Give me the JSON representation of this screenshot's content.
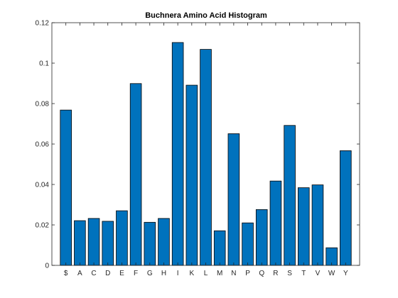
{
  "chart_data": {
    "type": "bar",
    "title": "Buchnera Amino Acid Histogram",
    "xlabel": "",
    "ylabel": "",
    "categories": [
      "$",
      "A",
      "C",
      "D",
      "E",
      "F",
      "G",
      "H",
      "I",
      "K",
      "L",
      "M",
      "N",
      "P",
      "Q",
      "R",
      "S",
      "T",
      "V",
      "W",
      "Y"
    ],
    "values": [
      0.0768,
      0.0221,
      0.0232,
      0.0218,
      0.027,
      0.0899,
      0.0213,
      0.0232,
      0.1102,
      0.0891,
      0.1068,
      0.0171,
      0.0651,
      0.021,
      0.0276,
      0.0417,
      0.0692,
      0.0384,
      0.0398,
      0.0087,
      0.0567
    ],
    "ylim": [
      0,
      0.12
    ],
    "yticks": [
      0,
      0.02,
      0.04,
      0.06,
      0.08,
      0.1,
      0.12
    ],
    "ytick_labels": [
      "0",
      "0.02",
      "0.04",
      "0.06",
      "0.08",
      "0.1",
      "0.12"
    ],
    "grid": false,
    "legend": "none",
    "bar_color": "#0072BD",
    "edge_color": "#000000"
  }
}
